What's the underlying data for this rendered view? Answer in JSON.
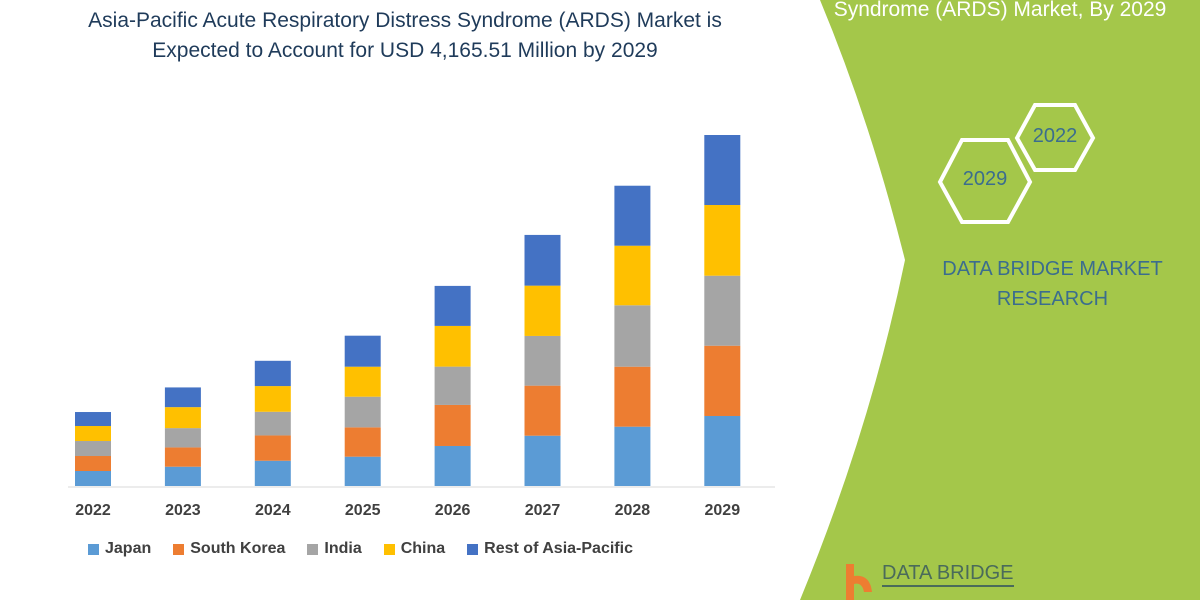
{
  "title_line1": "Asia-Pacific Acute Respiratory Distress Syndrome (ARDS) Market is",
  "title_line2": "Expected to Account for USD 4,165.51 Million by 2029",
  "side_panel": {
    "title": "Syndrome (ARDS) Market, By 2029",
    "hex_2029": "2029",
    "hex_2022": "2022",
    "brand_line1": "DATA BRIDGE MARKET",
    "brand_line2": "RESEARCH",
    "logo_text": "DATA BRIDGE",
    "color": "#a4c74a"
  },
  "chart_data": {
    "type": "bar",
    "stacked": true,
    "categories": [
      "2022",
      "2023",
      "2024",
      "2025",
      "2026",
      "2027",
      "2028",
      "2029"
    ],
    "series": [
      {
        "name": "Japan",
        "color": "#5b9bd5",
        "values": [
          178,
          229,
          300,
          348,
          475,
          597,
          704,
          831
        ]
      },
      {
        "name": "South Korea",
        "color": "#ed7d31",
        "values": [
          178,
          229,
          300,
          348,
          487,
          594,
          712,
          834
        ]
      },
      {
        "name": "India",
        "color": "#a5a5a5",
        "values": [
          178,
          229,
          281,
          364,
          455,
          590,
          729,
          831
        ]
      },
      {
        "name": "China",
        "color": "#ffc000",
        "values": [
          178,
          249,
          305,
          356,
          483,
          597,
          707,
          839
        ]
      },
      {
        "name": "Rest of Asia-Pacific",
        "color": "#4472c4",
        "values": [
          166,
          234,
          300,
          368,
          475,
          602,
          712,
          831
        ]
      }
    ],
    "ylim": [
      0,
      4166
    ],
    "grid": false,
    "legend": "bottom",
    "xlabel": "",
    "ylabel": ""
  }
}
